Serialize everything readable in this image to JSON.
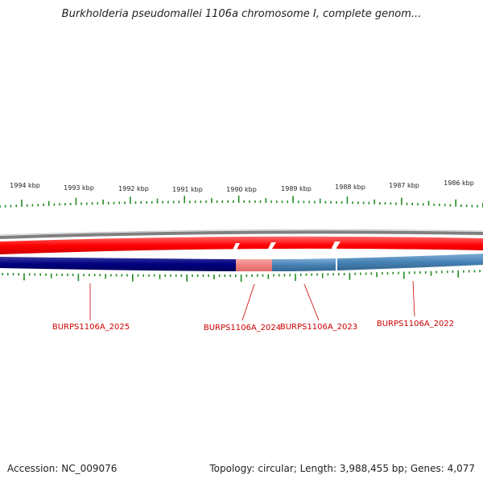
{
  "title": "Burkholderia pseudomallei 1106a chromosome I, complete genom...",
  "footer": {
    "accession": "Accession: NC_009076",
    "summary": "Topology: circular; Length: 3,988,455 bp; Genes: 4,077"
  },
  "ruler": {
    "labels": [
      "1994 kbp",
      "1993 kbp",
      "1992 kbp",
      "1991 kbp",
      "1990 kbp",
      "1989 kbp",
      "1988 kbp",
      "1987 kbp",
      "1986 kbp"
    ]
  },
  "genes": [
    {
      "name": "BURPS1106A_2025",
      "strand": "reverse",
      "selected": false
    },
    {
      "name": "BURPS1106A_2024",
      "strand": "reverse",
      "selected": true
    },
    {
      "name": "BURPS1106A_2023",
      "strand": "reverse",
      "selected": false
    },
    {
      "name": "BURPS1106A_2022",
      "strand": "reverse",
      "selected": false
    }
  ],
  "colors": {
    "forward_track": "#ff0000",
    "reverse_track_dark": "#000080",
    "reverse_track_light": "#4682b4",
    "selected_gene": "#f08080",
    "backbone": "#808080",
    "tick": "#228b22",
    "gene_label": "#cc0000"
  }
}
